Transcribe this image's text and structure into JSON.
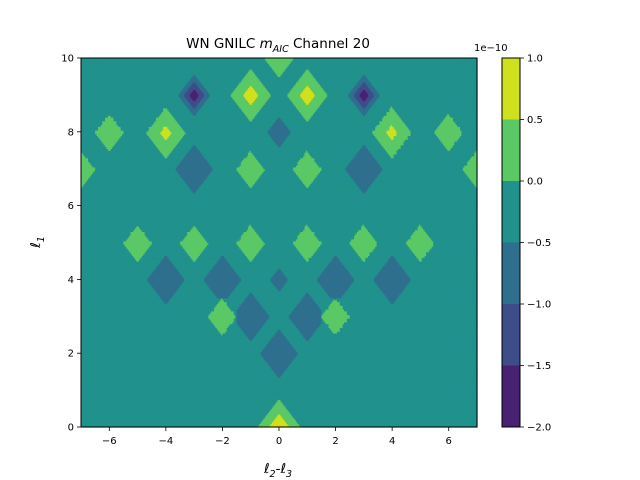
{
  "chart_data": {
    "type": "heatmap",
    "plot_kind": "filled contour",
    "title": {
      "prefix": "WN GNILC ",
      "math_main": "m",
      "math_sub": "AIC",
      "suffix": " Channel 20"
    },
    "xlabel": {
      "a": "ℓ",
      "a_sub": "2",
      "dash": "-",
      "b": "ℓ",
      "b_sub": "3"
    },
    "ylabel": {
      "main": "ℓ",
      "sub": "1"
    },
    "xlim": [
      -7,
      7
    ],
    "ylim": [
      0,
      10
    ],
    "xticks": [
      "−6",
      "−4",
      "−2",
      "0",
      "2",
      "4",
      "6"
    ],
    "yticks": [
      "0",
      "2",
      "4",
      "6",
      "8",
      "10"
    ],
    "colorbar": {
      "offset_text": "1e−10",
      "levels": [
        -2.0,
        -1.5,
        -1.0,
        -0.5,
        0.0,
        0.5,
        1.0
      ],
      "tick_labels": [
        "−2.0",
        "−1.5",
        "−1.0",
        "−0.5",
        "0.0",
        "0.5",
        "1.0"
      ],
      "colors": [
        "#482173",
        "#3d4d8a",
        "#2e6f8e",
        "#21918c",
        "#5ac864",
        "#cfe11c"
      ]
    },
    "scale": "1e-10",
    "background_value": -0.3,
    "features": [
      {
        "x": 0,
        "y": 0,
        "value": 1.0,
        "halfwidth": 1.0
      },
      {
        "x": -6,
        "y": 8,
        "value": 0.3,
        "halfwidth": 1.0
      },
      {
        "x": 6,
        "y": 8,
        "value": 0.3,
        "halfwidth": 1.0
      },
      {
        "x": -7,
        "y": 7,
        "value": 0.3,
        "halfwidth": 1.0
      },
      {
        "x": 7,
        "y": 7,
        "value": 0.3,
        "halfwidth": 1.0
      },
      {
        "x": -4,
        "y": 8,
        "value": 0.7,
        "halfwidth": 1.0
      },
      {
        "x": 4,
        "y": 8,
        "value": 0.7,
        "halfwidth": 1.0
      },
      {
        "x": -1,
        "y": 9,
        "value": 0.8,
        "halfwidth": 1.0
      },
      {
        "x": 1,
        "y": 9,
        "value": 0.8,
        "halfwidth": 1.0
      },
      {
        "x": 0,
        "y": 10,
        "value": 0.3,
        "halfwidth": 1.0
      },
      {
        "x": -1,
        "y": 7,
        "value": 0.3,
        "halfwidth": 1.0
      },
      {
        "x": 1,
        "y": 7,
        "value": 0.3,
        "halfwidth": 1.0
      },
      {
        "x": -5,
        "y": 5,
        "value": 0.3,
        "halfwidth": 1.0
      },
      {
        "x": -3,
        "y": 5,
        "value": 0.3,
        "halfwidth": 1.0
      },
      {
        "x": -1,
        "y": 5,
        "value": 0.3,
        "halfwidth": 1.0
      },
      {
        "x": 1,
        "y": 5,
        "value": 0.3,
        "halfwidth": 1.0
      },
      {
        "x": 3,
        "y": 5,
        "value": 0.3,
        "halfwidth": 1.0
      },
      {
        "x": 5,
        "y": 5,
        "value": 0.3,
        "halfwidth": 1.0
      },
      {
        "x": -2,
        "y": 3,
        "value": 0.3,
        "halfwidth": 1.0
      },
      {
        "x": 2,
        "y": 3,
        "value": 0.3,
        "halfwidth": 1.0
      },
      {
        "x": -3,
        "y": 9,
        "value": -1.9,
        "halfwidth": 0.67
      },
      {
        "x": 3,
        "y": 9,
        "value": -1.9,
        "halfwidth": 0.67
      },
      {
        "x": -3,
        "y": 7,
        "value": -0.9,
        "halfwidth": 1.0
      },
      {
        "x": 3,
        "y": 7,
        "value": -0.9,
        "halfwidth": 1.0
      },
      {
        "x": 0,
        "y": 8,
        "value": -0.65,
        "halfwidth": 1.0
      },
      {
        "x": -4,
        "y": 4,
        "value": -0.9,
        "halfwidth": 1.0
      },
      {
        "x": 4,
        "y": 4,
        "value": -0.9,
        "halfwidth": 1.0
      },
      {
        "x": -2,
        "y": 4,
        "value": -0.9,
        "halfwidth": 1.0
      },
      {
        "x": 2,
        "y": 4,
        "value": -0.9,
        "halfwidth": 1.0
      },
      {
        "x": -1,
        "y": 3,
        "value": -0.9,
        "halfwidth": 1.0
      },
      {
        "x": 1,
        "y": 3,
        "value": -0.9,
        "halfwidth": 1.0
      },
      {
        "x": 0,
        "y": 4,
        "value": -0.6,
        "halfwidth": 1.0
      },
      {
        "x": 0,
        "y": 2,
        "value": -0.9,
        "halfwidth": 1.0
      }
    ]
  }
}
